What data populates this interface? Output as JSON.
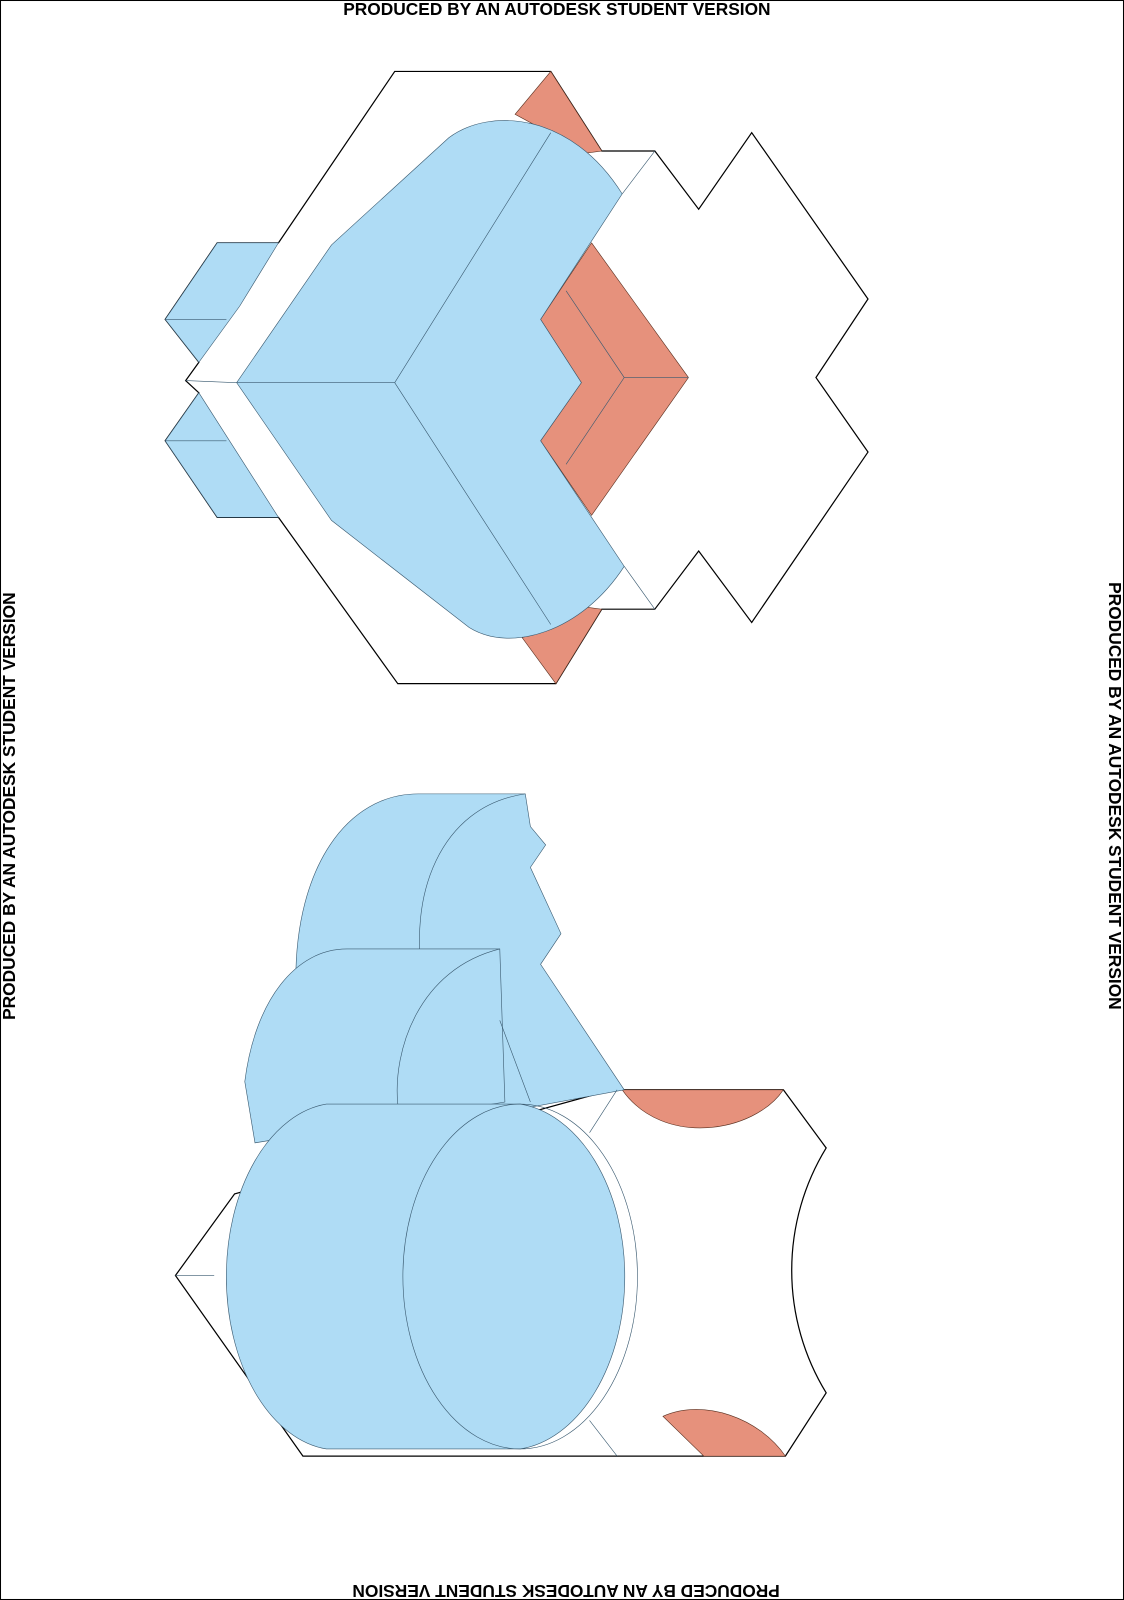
{
  "watermarks": {
    "top": "PRODUCED BY AN AUTODESK STUDENT VERSION",
    "bottom": "PRODUCED BY AN AUTODESK STUDENT VERSION",
    "left": "PRODUCED BY AN AUTODESK STUDENT VERSION",
    "right": "PRODUCED BY AN AUTODESK STUDENT VERSION"
  }
}
